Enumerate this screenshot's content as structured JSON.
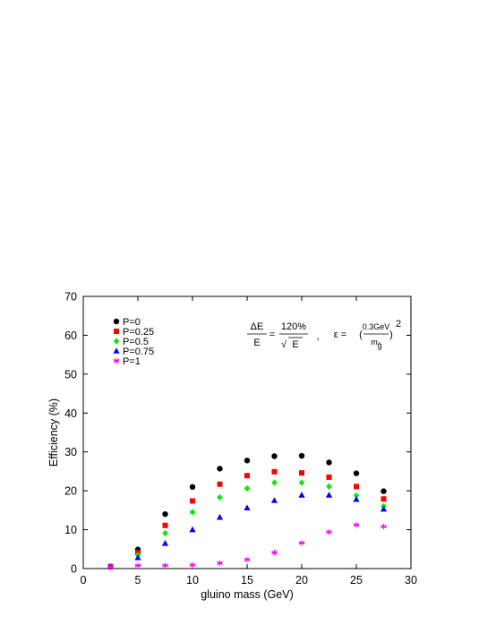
{
  "chart_data": {
    "type": "scatter",
    "xlabel": "gluino mass  (GeV)",
    "ylabel": "Efficiency (%)",
    "xlim": [
      0,
      30
    ],
    "ylim": [
      0,
      70
    ],
    "xticks": [
      0,
      5,
      10,
      15,
      20,
      25,
      30
    ],
    "yticks": [
      0,
      10,
      20,
      30,
      40,
      50,
      60,
      70
    ],
    "legend_position": "top-left",
    "grid": false,
    "x": [
      2.5,
      5,
      7.5,
      10,
      12.5,
      15,
      17.5,
      20,
      22.5,
      25,
      27.5
    ],
    "series": [
      {
        "name": "P=0",
        "marker": "circle",
        "color": "#000000",
        "values": [
          0.5,
          4.9,
          14.0,
          21.0,
          25.7,
          27.8,
          28.9,
          29.0,
          27.3,
          24.5,
          19.9
        ]
      },
      {
        "name": "P=0.25",
        "marker": "square",
        "color": "#ff0000",
        "values": [
          0.5,
          4.1,
          11.1,
          17.4,
          21.7,
          23.9,
          24.9,
          24.6,
          23.5,
          21.1,
          17.9
        ]
      },
      {
        "name": "P=0.5",
        "marker": "diamond",
        "color": "#00ee00",
        "values": [
          0.5,
          3.5,
          9.1,
          14.5,
          18.3,
          20.6,
          22.1,
          22.1,
          21.1,
          18.8,
          16.0
        ]
      },
      {
        "name": "P=0.75",
        "marker": "triangle",
        "color": "#0000ff",
        "values": [
          0.5,
          2.8,
          6.5,
          10.0,
          13.2,
          15.6,
          17.5,
          18.9,
          18.9,
          17.8,
          15.3
        ]
      },
      {
        "name": "P=1",
        "marker": "asterisk",
        "color": "#ff00ff",
        "values": [
          0.4,
          0.8,
          0.8,
          0.9,
          1.4,
          2.3,
          4.1,
          6.6,
          9.4,
          11.2,
          10.8
        ]
      }
    ],
    "annotation": {
      "lhs_num": "ΔE",
      "lhs_den": "E",
      "eq": "=",
      "rhs_num": "120%",
      "rhs_den": "E",
      "sqrt_symbol": "√",
      "sep": ",",
      "eps": "ε =",
      "eps_num": "0.3GeV",
      "eps_den": "m",
      "eps_den_sub": "g̃",
      "power": "2"
    }
  }
}
